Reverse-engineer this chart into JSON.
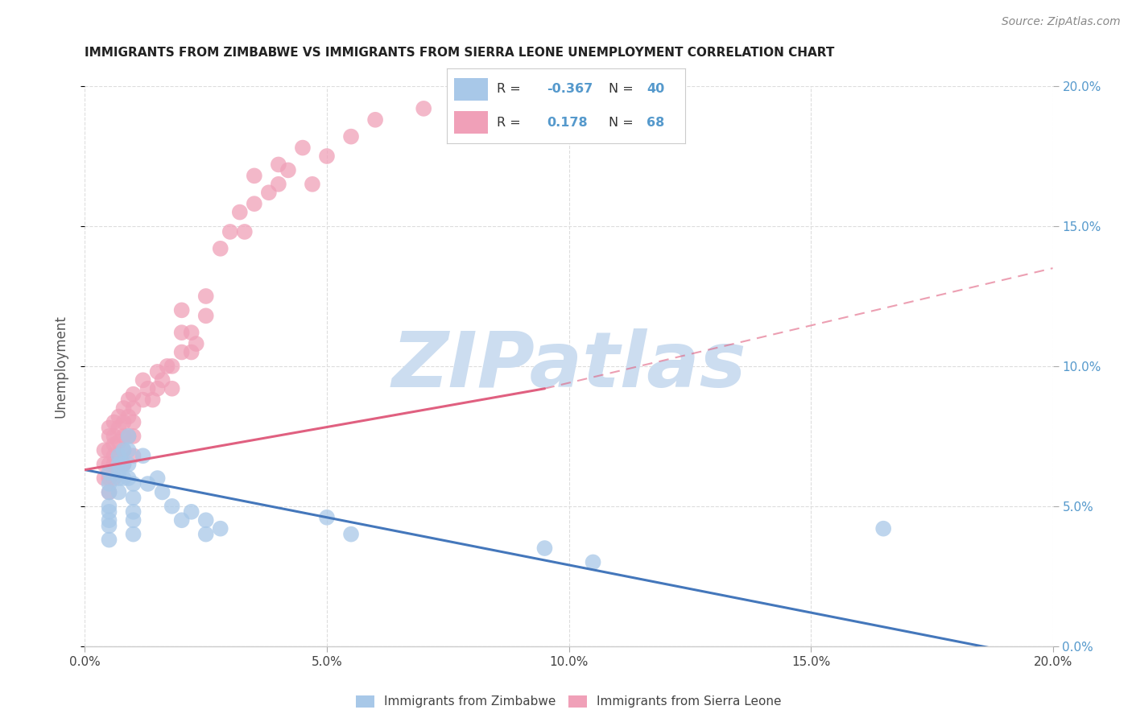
{
  "title": "IMMIGRANTS FROM ZIMBABWE VS IMMIGRANTS FROM SIERRA LEONE UNEMPLOYMENT CORRELATION CHART",
  "source": "Source: ZipAtlas.com",
  "ylabel": "Unemployment",
  "xlim": [
    0.0,
    0.2
  ],
  "ylim": [
    0.0,
    0.2
  ],
  "x_ticks": [
    0.0,
    0.05,
    0.1,
    0.15,
    0.2
  ],
  "y_ticks": [
    0.0,
    0.05,
    0.1,
    0.15,
    0.2
  ],
  "zimbabwe_color": "#a8c8e8",
  "sierra_leone_color": "#f0a0b8",
  "zimbabwe_line_color": "#4477bb",
  "sierra_leone_line_color": "#e06080",
  "zimbabwe_R": -0.367,
  "zimbabwe_N": 40,
  "sierra_leone_R": 0.178,
  "sierra_leone_N": 68,
  "zimbabwe_scatter_x": [
    0.005,
    0.005,
    0.005,
    0.005,
    0.005,
    0.005,
    0.005,
    0.005,
    0.007,
    0.007,
    0.007,
    0.007,
    0.007,
    0.008,
    0.008,
    0.008,
    0.009,
    0.009,
    0.009,
    0.009,
    0.01,
    0.01,
    0.01,
    0.01,
    0.01,
    0.012,
    0.013,
    0.015,
    0.016,
    0.018,
    0.02,
    0.022,
    0.025,
    0.025,
    0.028,
    0.05,
    0.055,
    0.095,
    0.105,
    0.165
  ],
  "zimbabwe_scatter_y": [
    0.062,
    0.058,
    0.055,
    0.05,
    0.048,
    0.045,
    0.043,
    0.038,
    0.068,
    0.065,
    0.062,
    0.06,
    0.055,
    0.07,
    0.065,
    0.06,
    0.075,
    0.07,
    0.065,
    0.06,
    0.058,
    0.053,
    0.048,
    0.045,
    0.04,
    0.068,
    0.058,
    0.06,
    0.055,
    0.05,
    0.045,
    0.048,
    0.045,
    0.04,
    0.042,
    0.046,
    0.04,
    0.035,
    0.03,
    0.042
  ],
  "sierra_leone_scatter_x": [
    0.004,
    0.004,
    0.004,
    0.005,
    0.005,
    0.005,
    0.005,
    0.005,
    0.005,
    0.006,
    0.006,
    0.006,
    0.006,
    0.006,
    0.006,
    0.007,
    0.007,
    0.007,
    0.007,
    0.008,
    0.008,
    0.008,
    0.008,
    0.008,
    0.009,
    0.009,
    0.009,
    0.01,
    0.01,
    0.01,
    0.01,
    0.01,
    0.012,
    0.012,
    0.013,
    0.014,
    0.015,
    0.015,
    0.016,
    0.017,
    0.018,
    0.018,
    0.02,
    0.02,
    0.02,
    0.022,
    0.022,
    0.023,
    0.025,
    0.025,
    0.028,
    0.03,
    0.032,
    0.033,
    0.035,
    0.035,
    0.038,
    0.04,
    0.04,
    0.042,
    0.045,
    0.047,
    0.05,
    0.055,
    0.06,
    0.07,
    0.08,
    0.09
  ],
  "sierra_leone_scatter_y": [
    0.07,
    0.065,
    0.06,
    0.078,
    0.075,
    0.07,
    0.065,
    0.06,
    0.055,
    0.08,
    0.075,
    0.072,
    0.068,
    0.065,
    0.06,
    0.082,
    0.078,
    0.073,
    0.068,
    0.085,
    0.08,
    0.075,
    0.07,
    0.065,
    0.088,
    0.082,
    0.075,
    0.09,
    0.085,
    0.08,
    0.075,
    0.068,
    0.095,
    0.088,
    0.092,
    0.088,
    0.098,
    0.092,
    0.095,
    0.1,
    0.1,
    0.092,
    0.12,
    0.112,
    0.105,
    0.112,
    0.105,
    0.108,
    0.125,
    0.118,
    0.142,
    0.148,
    0.155,
    0.148,
    0.168,
    0.158,
    0.162,
    0.172,
    0.165,
    0.17,
    0.178,
    0.165,
    0.175,
    0.182,
    0.188,
    0.192,
    0.195,
    0.198
  ],
  "watermark_text": "ZIPatlas",
  "watermark_color": "#ccddf0",
  "background_color": "#ffffff",
  "grid_color": "#dddddd",
  "right_tick_color": "#5599cc",
  "legend_box_color": "#eeeeee"
}
